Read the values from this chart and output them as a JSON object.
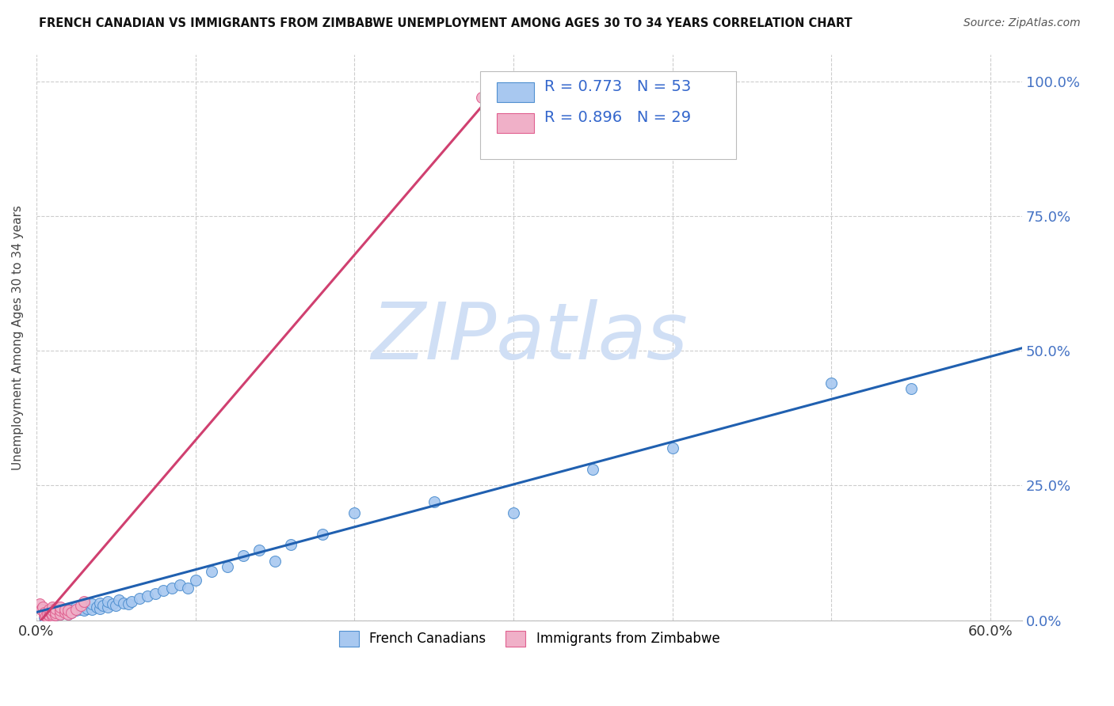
{
  "title": "FRENCH CANADIAN VS IMMIGRANTS FROM ZIMBABWE UNEMPLOYMENT AMONG AGES 30 TO 34 YEARS CORRELATION CHART",
  "source": "Source: ZipAtlas.com",
  "ylabel": "Unemployment Among Ages 30 to 34 years",
  "xlim": [
    0.0,
    0.62
  ],
  "ylim": [
    0.0,
    1.05
  ],
  "xtick_positions": [
    0.0,
    0.1,
    0.2,
    0.3,
    0.4,
    0.5,
    0.6
  ],
  "xtick_labels": [
    "0.0%",
    "",
    "",
    "",
    "",
    "",
    "60.0%"
  ],
  "ytick_positions": [
    0.0,
    0.25,
    0.5,
    0.75,
    1.0
  ],
  "ytick_labels_right": [
    "0.0%",
    "25.0%",
    "50.0%",
    "75.0%",
    "100.0%"
  ],
  "blue_fill": "#A8C8F0",
  "blue_edge": "#5090D0",
  "pink_fill": "#F0B0C8",
  "pink_edge": "#E06090",
  "blue_line_color": "#2060B0",
  "pink_line_color": "#D04070",
  "watermark": "ZIPatlas",
  "watermark_color": "#D0DFF5",
  "legend_R_blue": "R = 0.773",
  "legend_N_blue": "N = 53",
  "legend_R_pink": "R = 0.896",
  "legend_N_pink": "N = 29",
  "label_blue": "French Canadians",
  "label_pink": "Immigrants from Zimbabwe",
  "blue_scatter_x": [
    0.005,
    0.008,
    0.01,
    0.01,
    0.012,
    0.015,
    0.015,
    0.018,
    0.02,
    0.02,
    0.022,
    0.025,
    0.025,
    0.028,
    0.03,
    0.03,
    0.032,
    0.035,
    0.035,
    0.038,
    0.04,
    0.04,
    0.042,
    0.045,
    0.045,
    0.048,
    0.05,
    0.052,
    0.055,
    0.058,
    0.06,
    0.065,
    0.07,
    0.075,
    0.08,
    0.085,
    0.09,
    0.095,
    0.1,
    0.11,
    0.12,
    0.13,
    0.14,
    0.15,
    0.16,
    0.18,
    0.2,
    0.25,
    0.3,
    0.35,
    0.4,
    0.5,
    0.55
  ],
  "blue_scatter_y": [
    0.005,
    0.008,
    0.01,
    0.015,
    0.01,
    0.012,
    0.018,
    0.015,
    0.012,
    0.02,
    0.015,
    0.018,
    0.025,
    0.02,
    0.018,
    0.028,
    0.022,
    0.02,
    0.03,
    0.025,
    0.022,
    0.032,
    0.028,
    0.025,
    0.035,
    0.03,
    0.028,
    0.038,
    0.032,
    0.03,
    0.035,
    0.04,
    0.045,
    0.05,
    0.055,
    0.06,
    0.065,
    0.06,
    0.075,
    0.09,
    0.1,
    0.12,
    0.13,
    0.11,
    0.14,
    0.16,
    0.2,
    0.22,
    0.2,
    0.28,
    0.32,
    0.44,
    0.43
  ],
  "pink_scatter_x": [
    0.002,
    0.003,
    0.004,
    0.005,
    0.005,
    0.006,
    0.007,
    0.008,
    0.008,
    0.009,
    0.01,
    0.01,
    0.01,
    0.01,
    0.012,
    0.012,
    0.012,
    0.015,
    0.015,
    0.015,
    0.018,
    0.018,
    0.02,
    0.02,
    0.022,
    0.025,
    0.028,
    0.03,
    0.28
  ],
  "pink_scatter_y": [
    0.03,
    0.02,
    0.025,
    0.01,
    0.015,
    0.008,
    0.012,
    0.01,
    0.02,
    0.015,
    0.008,
    0.012,
    0.018,
    0.025,
    0.01,
    0.015,
    0.022,
    0.012,
    0.018,
    0.025,
    0.015,
    0.02,
    0.012,
    0.018,
    0.015,
    0.02,
    0.028,
    0.035,
    0.97
  ],
  "blue_line_x": [
    0.0,
    0.62
  ],
  "blue_line_y": [
    0.015,
    0.505
  ],
  "pink_line_x": [
    0.0,
    0.285
  ],
  "pink_line_y": [
    -0.01,
    0.97
  ]
}
